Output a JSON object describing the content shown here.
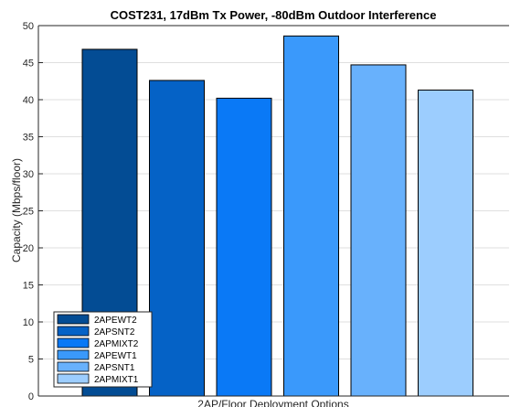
{
  "chart_data": {
    "type": "bar",
    "title": "COST231, 17dBm Tx Power, -80dBm Outdoor Interference",
    "xlabel": "2AP/Floor Deployment Options",
    "ylabel": "Capacity (Mbps/floor)",
    "ylim": [
      0,
      50
    ],
    "yticks": [
      0,
      5,
      10,
      15,
      20,
      25,
      30,
      35,
      40,
      45,
      50
    ],
    "grid": true,
    "legend_position": "bottom-left",
    "series": [
      {
        "name": "2APEWT2",
        "value": 46.8,
        "color": "#034c94"
      },
      {
        "name": "2APSNT2",
        "value": 42.6,
        "color": "#0562c6"
      },
      {
        "name": "2APMIXT2",
        "value": 40.2,
        "color": "#0a79f6"
      },
      {
        "name": "2APEWT1",
        "value": 48.6,
        "color": "#3a99fb"
      },
      {
        "name": "2APSNT1",
        "value": 44.7,
        "color": "#68b1fc"
      },
      {
        "name": "2APMIXT1",
        "value": 41.3,
        "color": "#9ccdfe"
      }
    ]
  }
}
